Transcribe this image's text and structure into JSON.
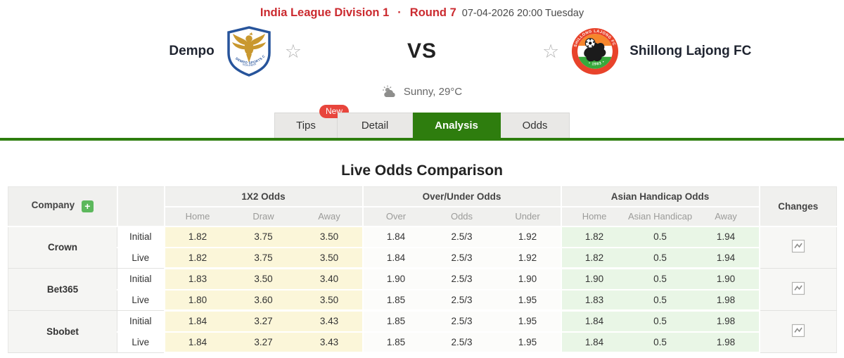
{
  "header": {
    "league": "India League Division 1",
    "separator": "·",
    "round": "Round 7",
    "datetime": "07-04-2026 20:00 Tuesday"
  },
  "match": {
    "home": {
      "name": "Dempo"
    },
    "away": {
      "name": "Shillong Lajong FC"
    },
    "vs_label": "VS",
    "favorite_icon": "☆",
    "weather": "Sunny, 29°C"
  },
  "tabs": [
    {
      "label": "Tips",
      "badge": "New",
      "active": false
    },
    {
      "label": "Detail",
      "active": false
    },
    {
      "label": "Analysis",
      "active": true
    },
    {
      "label": "Odds",
      "active": false
    }
  ],
  "section_title": "Live Odds Comparison",
  "odds_table": {
    "company_header": "Company",
    "add_symbol": "+",
    "changes_header": "Changes",
    "groups": [
      {
        "label": "1X2 Odds",
        "cols": [
          "Home",
          "Draw",
          "Away"
        ]
      },
      {
        "label": "Over/Under Odds",
        "cols": [
          "Over",
          "Odds",
          "Under"
        ]
      },
      {
        "label": "Asian Handicap Odds",
        "cols": [
          "Home",
          "Asian Handicap",
          "Away"
        ]
      }
    ],
    "companies": [
      {
        "name": "Crown",
        "rows": [
          {
            "type": "Initial",
            "x12": [
              "1.82",
              "3.75",
              "3.50"
            ],
            "ou": [
              "1.84",
              "2.5/3",
              "1.92"
            ],
            "ah": [
              "1.82",
              "0.5",
              "1.94"
            ]
          },
          {
            "type": "Live",
            "x12": [
              "1.82",
              "3.75",
              "3.50"
            ],
            "ou": [
              "1.84",
              "2.5/3",
              "1.92"
            ],
            "ah": [
              "1.82",
              "0.5",
              "1.94"
            ]
          }
        ]
      },
      {
        "name": "Bet365",
        "rows": [
          {
            "type": "Initial",
            "x12": [
              "1.83",
              "3.50",
              "3.40"
            ],
            "ou": [
              "1.90",
              "2.5/3",
              "1.90"
            ],
            "ah": [
              "1.90",
              "0.5",
              "1.90"
            ]
          },
          {
            "type": "Live",
            "x12": [
              "1.80",
              "3.60",
              "3.50"
            ],
            "ou": [
              "1.85",
              "2.5/3",
              "1.95"
            ],
            "ah": [
              "1.83",
              "0.5",
              "1.98"
            ]
          }
        ]
      },
      {
        "name": "Sbobet",
        "rows": [
          {
            "type": "Initial",
            "x12": [
              "1.84",
              "3.27",
              "3.43"
            ],
            "ou": [
              "1.85",
              "2.5/3",
              "1.95"
            ],
            "ah": [
              "1.84",
              "0.5",
              "1.98"
            ]
          },
          {
            "type": "Live",
            "x12": [
              "1.84",
              "3.27",
              "3.43"
            ],
            "ou": [
              "1.85",
              "2.5/3",
              "1.95"
            ],
            "ah": [
              "1.84",
              "0.5",
              "1.98"
            ]
          }
        ]
      }
    ]
  },
  "colors": {
    "accent_red": "#cb2a2f",
    "active_tab_green": "#2e7d0e",
    "badge_red": "#e8453c",
    "yellow_cell": "#fbf6d9",
    "green_cell": "#e9f6e6",
    "plus_green": "#5cb85c"
  }
}
